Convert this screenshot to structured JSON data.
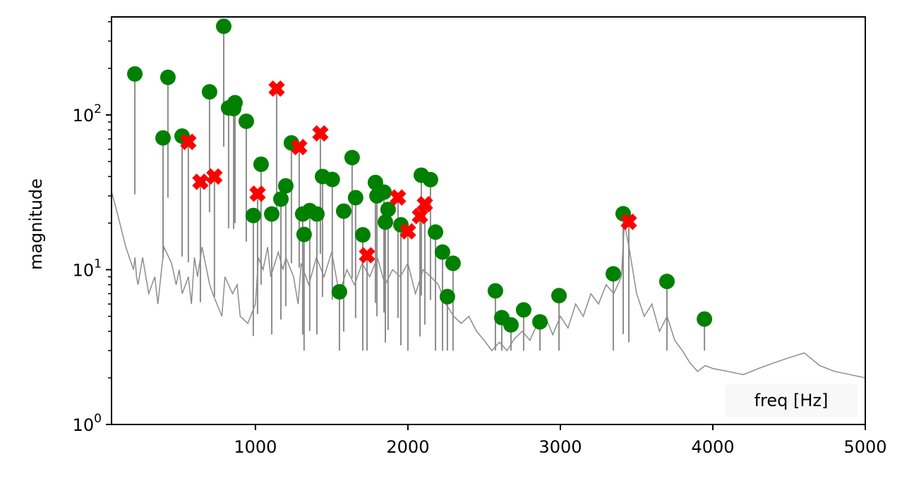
{
  "chart_data": {
    "type": "line",
    "title": "",
    "xlabel": "freq [Hz]",
    "ylabel": "magnitude",
    "xscale": "linear",
    "yscale": "log",
    "xlim": [
      56,
      5000
    ],
    "ylim": [
      1,
      430
    ],
    "x_ticks": [
      1000,
      2000,
      3000,
      4000,
      5000
    ],
    "x_tick_labels": [
      "1000",
      "2000",
      "3000",
      "4000",
      "5000"
    ],
    "y_ticks": [
      1,
      10,
      100
    ],
    "y_tick_labels": [
      {
        "base": "10",
        "exp": "0"
      },
      {
        "base": "10",
        "exp": "1"
      },
      {
        "base": "10",
        "exp": "2"
      }
    ],
    "grid": false,
    "legend": null,
    "colors": {
      "spectrum": "#8c8c8c",
      "peaks_kept": "#008000",
      "peaks_rejected": "#ff0000"
    },
    "series": [
      {
        "name": "spectrum",
        "type": "line",
        "color": "#8c8c8c",
        "x": [
          56,
          100,
          150,
          200,
          210,
          220,
          230,
          260,
          300,
          340,
          360,
          400,
          450,
          480,
          500,
          520,
          560,
          580,
          600,
          620,
          650,
          700,
          720,
          780,
          800,
          850,
          880,
          900,
          950,
          1000,
          1020,
          1050,
          1080,
          1100,
          1150,
          1180,
          1200,
          1250,
          1280,
          1300,
          1350,
          1400,
          1450,
          1500,
          1550,
          1600,
          1650,
          1700,
          1750,
          1800,
          1850,
          1900,
          1950,
          2000,
          2050,
          2100,
          2150,
          2200,
          2250,
          2300,
          2350,
          2400,
          2450,
          2500,
          2550,
          2600,
          2650,
          2700,
          2750,
          2800,
          2850,
          2900,
          2950,
          3000,
          3050,
          3100,
          3150,
          3200,
          3250,
          3300,
          3350,
          3400,
          3420,
          3450,
          3500,
          3550,
          3600,
          3650,
          3700,
          3750,
          3800,
          3850,
          3900,
          3950,
          4000,
          4100,
          4200,
          4300,
          4400,
          4500,
          4600,
          4700,
          4800,
          4900,
          5000
        ],
        "y": [
          32,
          22,
          14,
          10,
          12,
          9,
          8,
          12,
          7,
          9,
          6,
          14,
          11,
          8,
          10,
          7,
          9,
          6,
          12,
          9,
          14,
          8,
          7,
          5,
          9,
          7,
          8,
          5,
          4.5,
          6,
          12,
          10,
          14,
          9,
          13,
          10,
          12,
          9,
          6,
          11,
          8,
          12,
          9,
          13,
          7,
          10,
          8,
          11,
          9,
          12,
          8,
          10,
          9,
          11,
          7,
          10,
          9,
          8,
          6,
          5,
          4.5,
          5,
          4,
          3.5,
          3,
          3.4,
          3,
          3.6,
          4,
          3.5,
          4.5,
          5,
          3.8,
          5,
          4.2,
          6,
          5,
          7,
          6,
          8,
          7,
          9,
          20,
          14,
          7,
          5,
          6,
          4,
          5,
          3.5,
          3,
          2.5,
          2.2,
          2.4,
          2.3,
          2.2,
          2.1,
          2.3,
          2.5,
          2.7,
          2.9,
          2.4,
          2.2,
          2.1,
          2.0
        ]
      },
      {
        "name": "peaks_kept",
        "type": "scatter",
        "marker": "circle",
        "color": "#008000",
        "points": [
          [
            209,
            184
          ],
          [
            394,
            71
          ],
          [
            426,
            175
          ],
          [
            519,
            73
          ],
          [
            699,
            141
          ],
          [
            792,
            374
          ],
          [
            824,
            111
          ],
          [
            857,
            110
          ],
          [
            866,
            120
          ],
          [
            940,
            91
          ],
          [
            986,
            22.4
          ],
          [
            1037,
            48
          ],
          [
            1107,
            22.9
          ],
          [
            1167,
            28.6
          ],
          [
            1199,
            34.8
          ],
          [
            1236,
            66
          ],
          [
            1310,
            22.9
          ],
          [
            1319,
            16.9
          ],
          [
            1356,
            24.1
          ],
          [
            1403,
            22.9
          ],
          [
            1440,
            40
          ],
          [
            1504,
            38.3
          ],
          [
            1551,
            7.2
          ],
          [
            1579,
            23.9
          ],
          [
            1634,
            53
          ],
          [
            1657,
            29.2
          ],
          [
            1704,
            16.8
          ],
          [
            1787,
            36.6
          ],
          [
            1797,
            30
          ],
          [
            1843,
            31.7
          ],
          [
            1852,
            20.3
          ],
          [
            1870,
            24.5
          ],
          [
            1954,
            19.5
          ],
          [
            2088,
            40.8
          ],
          [
            2148,
            38.2
          ],
          [
            2181,
            17.5
          ],
          [
            2227,
            13.0
          ],
          [
            2259,
            6.7
          ],
          [
            2296,
            11.0
          ],
          [
            2574,
            7.3
          ],
          [
            2616,
            4.9
          ],
          [
            2676,
            4.4
          ],
          [
            2759,
            5.5
          ],
          [
            2866,
            4.6
          ],
          [
            2991,
            6.8
          ],
          [
            3347,
            9.4
          ],
          [
            3412,
            23.0
          ],
          [
            3699,
            8.4
          ],
          [
            3945,
            4.8
          ]
        ]
      },
      {
        "name": "peaks_rejected",
        "type": "scatter",
        "marker": "x-filled",
        "color": "#ff0000",
        "points": [
          [
            560,
            67
          ],
          [
            639,
            37
          ],
          [
            731,
            40
          ],
          [
            1014,
            31
          ],
          [
            1139,
            148
          ],
          [
            1287,
            62
          ],
          [
            1426,
            76
          ],
          [
            1732,
            12.4
          ],
          [
            1935,
            29.3
          ],
          [
            2000,
            17.7
          ],
          [
            2079,
            22.2
          ],
          [
            2111,
            26.5
          ],
          [
            3449,
            20.4
          ]
        ]
      }
    ]
  }
}
